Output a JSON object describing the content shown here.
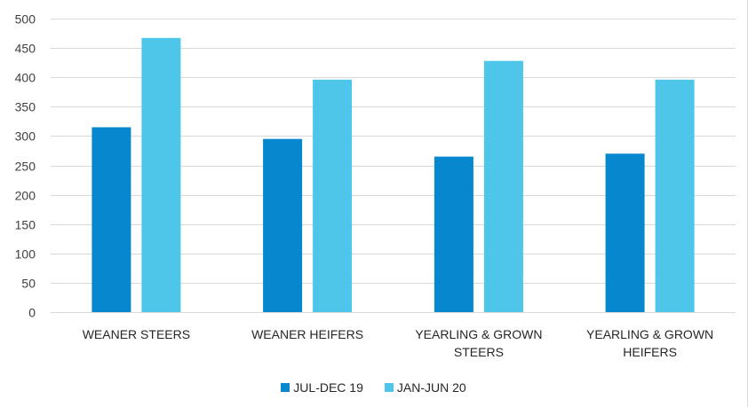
{
  "chart_data": {
    "type": "bar",
    "title": "",
    "xlabel": "",
    "ylabel": "",
    "categories": [
      [
        "WEANER STEERS"
      ],
      [
        "WEANER HEIFERS"
      ],
      [
        "YEARLING & GROWN",
        "STEERS"
      ],
      [
        "YEARLING & GROWN",
        "HEIFERS"
      ]
    ],
    "series": [
      {
        "name": "JUL-DEC 19",
        "color": "#0787CE",
        "values": [
          315,
          295,
          265,
          270
        ]
      },
      {
        "name": "JAN-JUN 20",
        "color": "#4DC6EA",
        "values": [
          467,
          396,
          428,
          396
        ]
      }
    ],
    "ylim": [
      0,
      500
    ],
    "yticks": [
      0,
      50,
      100,
      150,
      200,
      250,
      300,
      350,
      400,
      450,
      500
    ],
    "grid": true,
    "legend_position": "bottom"
  },
  "legend": {
    "items": [
      {
        "label": "JUL-DEC 19",
        "color": "#0787CE"
      },
      {
        "label": "JAN-JUN 20",
        "color": "#4DC6EA"
      }
    ]
  }
}
